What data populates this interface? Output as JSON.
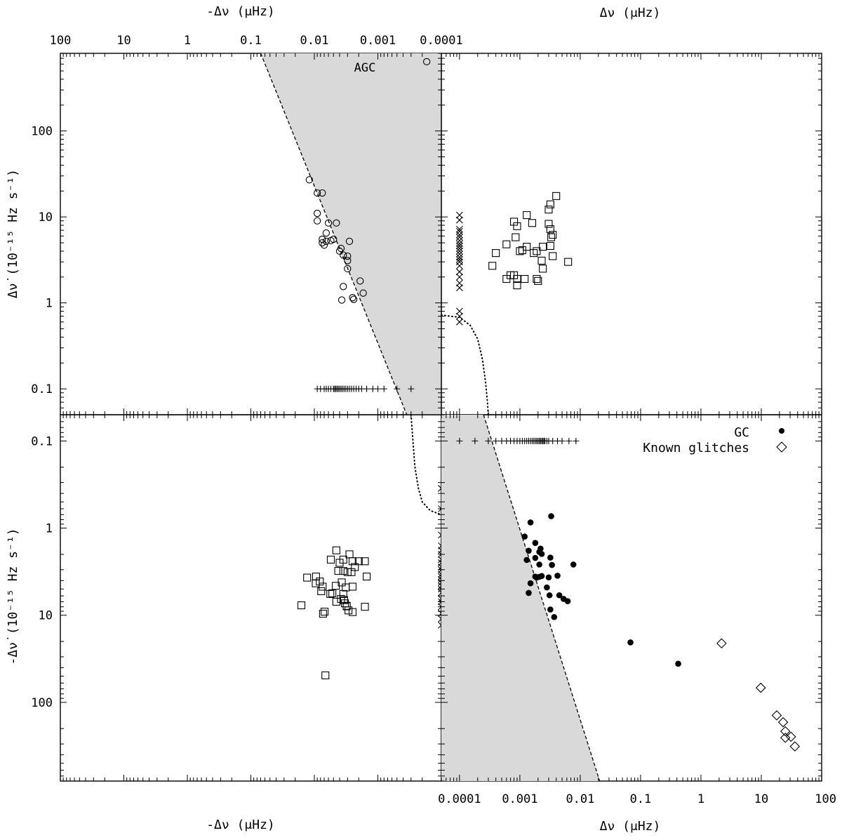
{
  "chart_data": [
    {
      "panel": "top-left",
      "type": "scatter",
      "x_scale": "log",
      "y_scale": "log",
      "x_axis": "top",
      "x_direction": "reversed",
      "xlabel": "-Δν (μHz)",
      "ylabel": "Δν̇ (10⁻¹⁵ Hz s⁻¹)",
      "xlim": [
        100,
        0.0001
      ],
      "ylim": [
        0.05,
        800
      ],
      "x_ticks": [
        "100",
        "10",
        "1",
        "0.1",
        "0.01",
        "0.001",
        "0.0001"
      ],
      "y_ticks": [
        "0.1",
        "1",
        "10",
        "100"
      ],
      "annotations": [
        "AGC"
      ],
      "agc_point": {
        "x": 0.00017,
        "y": 640
      },
      "shaded_region": {
        "boundary": [
          [
            0.07,
            800
          ],
          [
            0.00035,
            0.05
          ]
        ]
      },
      "series": [
        {
          "marker": "circle",
          "points": [
            [
              0.012,
              27
            ],
            [
              0.009,
              19
            ],
            [
              0.0075,
              19
            ],
            [
              0.009,
              11
            ],
            [
              0.009,
              9
            ],
            [
              0.006,
              8.5
            ],
            [
              0.0045,
              8.5
            ],
            [
              0.0065,
              6.5
            ],
            [
              0.0075,
              5.5
            ],
            [
              0.005,
              5.5
            ],
            [
              0.0055,
              5.3
            ],
            [
              0.0065,
              5.2
            ],
            [
              0.007,
              4.7
            ],
            [
              0.0075,
              5
            ],
            [
              0.0038,
              4.3
            ],
            [
              0.004,
              4
            ],
            [
              0.0035,
              3.6
            ],
            [
              0.0028,
              5.2
            ],
            [
              0.003,
              3.5
            ],
            [
              0.003,
              3.1
            ],
            [
              0.003,
              2.5
            ],
            [
              0.0035,
              1.55
            ],
            [
              0.0024,
              1.1
            ],
            [
              0.0025,
              1.15
            ],
            [
              0.0019,
              1.8
            ],
            [
              0.0017,
              1.3
            ],
            [
              0.0037,
              1.08
            ]
          ]
        },
        {
          "marker": "plus",
          "y": 0.1,
          "x": [
            0.009,
            0.008,
            0.007,
            0.0065,
            0.006,
            0.0055,
            0.005,
            0.0048,
            0.0046,
            0.0044,
            0.0042,
            0.004,
            0.0038,
            0.0036,
            0.0034,
            0.0032,
            0.003,
            0.0028,
            0.0026,
            0.0024,
            0.0022,
            0.002,
            0.0018,
            0.0015,
            0.0012,
            0.001,
            0.0008,
            0.0005,
            0.0003
          ]
        }
      ]
    },
    {
      "panel": "top-right",
      "type": "scatter",
      "x_scale": "log",
      "y_scale": "log",
      "x_axis": "top",
      "xlabel": "Δν (μHz)",
      "xlim": [
        5e-05,
        100
      ],
      "ylim": [
        0.05,
        800
      ],
      "dotted_curve": [
        [
          5e-05,
          0.72
        ],
        [
          0.0001,
          0.68
        ],
        [
          0.00015,
          0.55
        ],
        [
          0.0002,
          0.38
        ],
        [
          0.00024,
          0.22
        ],
        [
          0.00027,
          0.12
        ],
        [
          0.00029,
          0.07
        ],
        [
          0.0003,
          0.05
        ]
      ],
      "series": [
        {
          "marker": "square",
          "points": [
            [
              0.004,
              17.5
            ],
            [
              0.0032,
              14
            ],
            [
              0.003,
              12.2
            ],
            [
              0.0013,
              10.5
            ],
            [
              0.0016,
              8.5
            ],
            [
              0.0008,
              8.8
            ],
            [
              0.0009,
              7.8
            ],
            [
              0.003,
              8.3
            ],
            [
              0.0032,
              7.2
            ],
            [
              0.0035,
              6.2
            ],
            [
              0.0033,
              5.8
            ],
            [
              0.00085,
              5.8
            ],
            [
              0.0006,
              4.8
            ],
            [
              0.0013,
              4.5
            ],
            [
              0.0011,
              4.1
            ],
            [
              0.001,
              4
            ],
            [
              0.0024,
              4.5
            ],
            [
              0.0019,
              4
            ],
            [
              0.0017,
              3.8
            ],
            [
              0.0032,
              4.6
            ],
            [
              0.0004,
              3.8
            ],
            [
              0.0035,
              3.5
            ],
            [
              0.0023,
              3.1
            ],
            [
              0.0024,
              2.5
            ],
            [
              0.0063,
              3
            ],
            [
              0.00035,
              2.7
            ],
            [
              0.0007,
              2.1
            ],
            [
              0.0008,
              2.1
            ],
            [
              0.0009,
              1.9
            ],
            [
              0.0012,
              1.9
            ],
            [
              0.0006,
              1.9
            ],
            [
              0.0019,
              1.9
            ],
            [
              0.002,
              1.8
            ],
            [
              0.0009,
              1.6
            ]
          ]
        },
        {
          "marker": "cross",
          "x": 0.0001,
          "y": [
            10.5,
            9.2,
            7.2,
            6.8,
            6.2,
            5.8,
            5.3,
            4.9,
            4.6,
            4.3,
            4,
            3.7,
            3.4,
            3.2,
            3,
            2.7,
            2.3,
            2,
            1.7,
            1.5,
            0.8,
            0.7,
            0.6
          ]
        }
      ]
    },
    {
      "panel": "bottom-left",
      "type": "scatter",
      "x_scale": "log",
      "y_scale": "log",
      "x_axis": "bottom",
      "x_direction": "reversed",
      "y_direction": "reversed",
      "xlabel": "-Δν (μHz)",
      "ylabel": "-Δν̇ (10⁻¹⁵ Hz s⁻¹)",
      "xlim": [
        100,
        0.0001
      ],
      "ylim": [
        0.05,
        800
      ],
      "y_ticks": [
        "0.1",
        "1",
        "10",
        "100"
      ],
      "dotted_curve": [
        [
          0.0003,
          0.05
        ],
        [
          0.00028,
          0.1
        ],
        [
          0.00026,
          0.2
        ],
        [
          0.00023,
          0.35
        ],
        [
          0.0002,
          0.5
        ],
        [
          0.00015,
          0.63
        ],
        [
          0.0001,
          0.7
        ]
      ],
      "series": [
        {
          "marker": "square",
          "points": [
            [
              0.0045,
              1.8
            ],
            [
              0.0028,
              2
            ],
            [
              0.0055,
              2.3
            ],
            [
              0.0035,
              2.3
            ],
            [
              0.004,
              2.5
            ],
            [
              0.0025,
              2.4
            ],
            [
              0.002,
              2.4
            ],
            [
              0.0016,
              2.4
            ],
            [
              0.0023,
              2.8
            ],
            [
              0.0042,
              3.1
            ],
            [
              0.0035,
              3.1
            ],
            [
              0.003,
              3.2
            ],
            [
              0.0026,
              3.2
            ],
            [
              0.0015,
              3.6
            ],
            [
              0.013,
              3.7
            ],
            [
              0.0094,
              3.6
            ],
            [
              0.0082,
              4.1
            ],
            [
              0.0095,
              4.3
            ],
            [
              0.0074,
              4.7
            ],
            [
              0.0046,
              4.6
            ],
            [
              0.0037,
              4.2
            ],
            [
              0.0032,
              4.8
            ],
            [
              0.0025,
              4.7
            ],
            [
              0.0078,
              5.3
            ],
            [
              0.0056,
              5.7
            ],
            [
              0.0052,
              5.6
            ],
            [
              0.0035,
              5.7
            ],
            [
              0.0038,
              6.5
            ],
            [
              0.0034,
              6.7
            ],
            [
              0.0045,
              7
            ],
            [
              0.0033,
              7.3
            ],
            [
              0.0031,
              7.8
            ],
            [
              0.0069,
              9.1
            ],
            [
              0.0073,
              9.6
            ],
            [
              0.0029,
              8.8
            ],
            [
              0.0031,
              7.9
            ],
            [
              0.0025,
              9.2
            ],
            [
              0.0016,
              8
            ],
            [
              0.016,
              7.7
            ],
            [
              0.0067,
              49
            ]
          ]
        },
        {
          "marker": "cross",
          "x": 0.0001,
          "y": [
            0.35,
            0.6,
            1.2,
            1.6,
            1.8,
            2,
            2.3,
            2.5,
            2.8,
            3,
            3.4,
            3.6,
            3.9,
            4.2,
            4.6,
            5,
            5.5,
            6.5,
            7,
            8,
            9.5,
            11,
            13
          ]
        }
      ]
    },
    {
      "panel": "bottom-right",
      "type": "scatter",
      "x_scale": "log",
      "y_scale": "log",
      "x_axis": "bottom",
      "y_direction": "reversed",
      "xlabel": "Δν (μHz)",
      "xlim": [
        5e-05,
        100
      ],
      "ylim": [
        0.05,
        800
      ],
      "x_ticks": [
        "0.0001",
        "0.001",
        "0.01",
        "0.1",
        "1",
        "10",
        "100"
      ],
      "shaded_region": {
        "boundary": [
          [
            0.00025,
            0.05
          ],
          [
            0.021,
            800
          ]
        ]
      },
      "legend": {
        "position": "top-right",
        "entries": [
          {
            "label": "GC",
            "marker": "filled-circle"
          },
          {
            "label": "Known glitches",
            "marker": "diamond"
          }
        ]
      },
      "series": [
        {
          "name": "GC",
          "marker": "filled-circle",
          "points": [
            [
              0.0033,
              0.73
            ],
            [
              0.0015,
              0.86
            ],
            [
              0.0012,
              1.25
            ],
            [
              0.0018,
              1.48
            ],
            [
              0.0022,
              1.72
            ],
            [
              0.0014,
              1.82
            ],
            [
              0.0021,
              1.88
            ],
            [
              0.0023,
              1.98
            ],
            [
              0.0032,
              2.18
            ],
            [
              0.0018,
              2.2
            ],
            [
              0.0013,
              2.32
            ],
            [
              0.0077,
              2.62
            ],
            [
              0.0034,
              2.65
            ],
            [
              0.0021,
              2.62
            ],
            [
              0.0042,
              3.52
            ],
            [
              0.0023,
              3.55
            ],
            [
              0.0018,
              3.6
            ],
            [
              0.0019,
              3.7
            ],
            [
              0.003,
              3.68
            ],
            [
              0.0021,
              3.62
            ],
            [
              0.0015,
              4.3
            ],
            [
              0.0028,
              4.8
            ],
            [
              0.0014,
              5.55
            ],
            [
              0.0045,
              5.9
            ],
            [
              0.0031,
              5.9
            ],
            [
              0.0053,
              6.5
            ],
            [
              0.0062,
              6.9
            ],
            [
              0.0032,
              8.6
            ],
            [
              0.0037,
              10.5
            ],
            [
              0.068,
              20.5
            ],
            [
              0.42,
              36
            ]
          ]
        },
        {
          "name": "Known glitches",
          "marker": "diamond",
          "points": [
            [
              2.2,
              21
            ],
            [
              9.8,
              68
            ],
            [
              18,
              141
            ],
            [
              23,
              169
            ],
            [
              25,
              215
            ],
            [
              25,
              255
            ],
            [
              31,
              248
            ],
            [
              36,
              320
            ]
          ]
        },
        {
          "marker": "plus",
          "y": 0.1,
          "x": [
            0.0001,
            0.00018,
            0.0003,
            0.0004,
            0.0005,
            0.0006,
            0.0007,
            0.0008,
            0.0009,
            0.001,
            0.0011,
            0.0012,
            0.0013,
            0.0014,
            0.0015,
            0.0016,
            0.0017,
            0.0018,
            0.0019,
            0.002,
            0.0021,
            0.0022,
            0.0023,
            0.0024,
            0.0025,
            0.0026,
            0.0028,
            0.003,
            0.0035,
            0.0042,
            0.005,
            0.0065,
            0.0085
          ]
        }
      ]
    }
  ]
}
